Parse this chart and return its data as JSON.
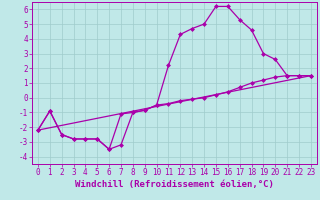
{
  "xlabel": "Windchill (Refroidissement éolien,°C)",
  "bg_color": "#c0e8e8",
  "grid_color": "#a0cccc",
  "line_color": "#aa00aa",
  "xlim": [
    -0.5,
    23.5
  ],
  "ylim": [
    -4.5,
    6.5
  ],
  "xticks": [
    0,
    1,
    2,
    3,
    4,
    5,
    6,
    7,
    8,
    9,
    10,
    11,
    12,
    13,
    14,
    15,
    16,
    17,
    18,
    19,
    20,
    21,
    22,
    23
  ],
  "yticks": [
    -4,
    -3,
    -2,
    -1,
    0,
    1,
    2,
    3,
    4,
    5,
    6
  ],
  "curve1_x": [
    0,
    1,
    2,
    3,
    4,
    5,
    6,
    7,
    8,
    9,
    10,
    11,
    12,
    13,
    14,
    15,
    16,
    17,
    18,
    19,
    20,
    21,
    22,
    23
  ],
  "curve1_y": [
    -2.2,
    -0.9,
    -2.5,
    -2.8,
    -2.8,
    -2.8,
    -3.5,
    -1.1,
    -1.0,
    -0.85,
    -0.5,
    2.2,
    4.3,
    4.7,
    5.0,
    6.2,
    6.2,
    5.3,
    4.6,
    3.0,
    2.6,
    1.5,
    1.5,
    1.5
  ],
  "curve2_x": [
    0,
    1,
    2,
    3,
    4,
    5,
    6,
    7,
    8,
    9,
    10,
    11,
    12,
    13,
    14,
    15,
    16,
    17,
    18,
    19,
    20,
    21,
    22,
    23
  ],
  "curve2_y": [
    -2.2,
    -0.9,
    -2.5,
    -2.8,
    -2.8,
    -2.8,
    -3.5,
    -3.2,
    -1.0,
    -0.85,
    -0.5,
    -0.4,
    -0.2,
    -0.1,
    0.0,
    0.2,
    0.4,
    0.7,
    1.0,
    1.2,
    1.4,
    1.5,
    1.5,
    1.5
  ],
  "curve3_x": [
    0,
    23
  ],
  "curve3_y": [
    -2.2,
    1.5
  ],
  "marker": "D",
  "markersize": 2.5,
  "linewidth": 0.9,
  "xlabel_fontsize": 6.5,
  "tick_fontsize": 5.5
}
